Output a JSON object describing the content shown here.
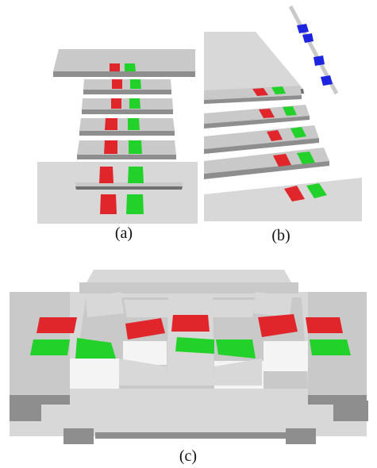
{
  "panels": {
    "a": {
      "caption": "(a)"
    },
    "b": {
      "caption": "(b)"
    },
    "c": {
      "caption": "(c)"
    }
  },
  "colors": {
    "background": "#ffffff",
    "surface_top": "#c9c9c9",
    "surface_light": "#d8d8d8",
    "surface_side": "#8e8e8e",
    "surface_dark": "#6f6f6f",
    "white_patch": "#f4f4f4",
    "red_marker": "#e0262a",
    "green_marker": "#22d12a",
    "blue_marker": "#1d24e0"
  }
}
